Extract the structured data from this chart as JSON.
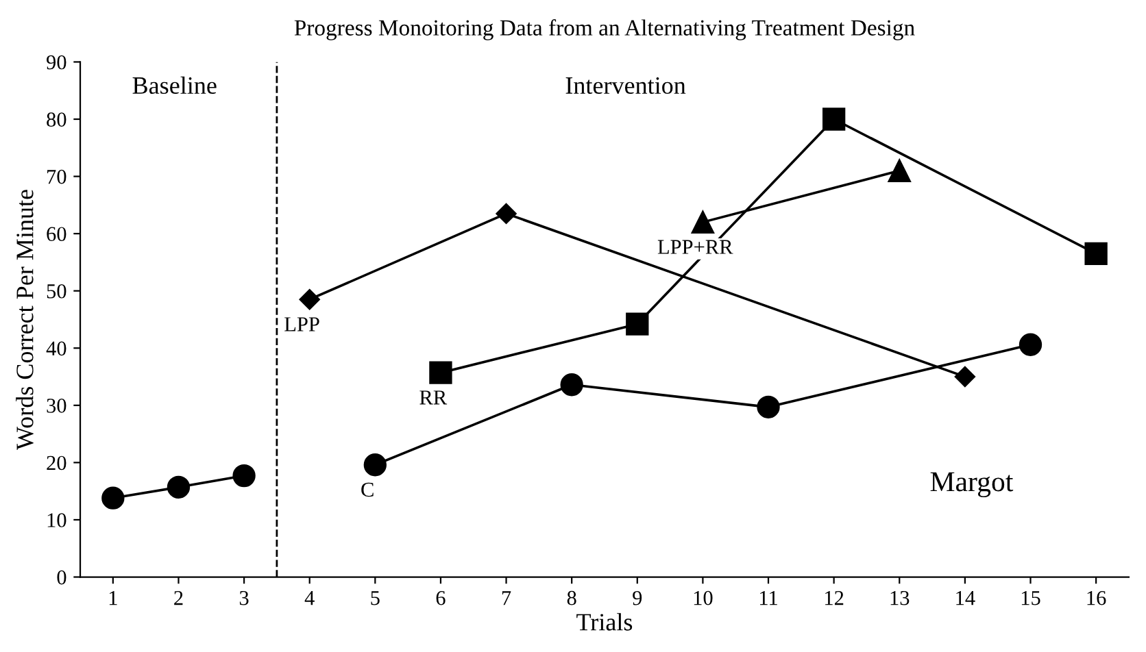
{
  "chart_data": {
    "type": "line",
    "title": "Progress Monoitoring Data from an Alternativing Treatment Design",
    "xlabel": "Trials",
    "ylabel": "Words Correct Per Minute",
    "xlim": [
      0.5,
      16.5
    ],
    "xticks": [
      1,
      2,
      3,
      4,
      5,
      6,
      7,
      8,
      9,
      10,
      11,
      12,
      13,
      14,
      15,
      16
    ],
    "ylim": [
      0,
      90
    ],
    "yticks": [
      0,
      10,
      20,
      30,
      40,
      50,
      60,
      70,
      80,
      90
    ],
    "grid": false,
    "legend": false,
    "line_style": "solid",
    "series": [
      {
        "color": "#000000",
        "marker": "circle",
        "x": [
          1,
          2,
          3
        ],
        "values": [
          13.8,
          15.7,
          17.7
        ]
      },
      {
        "name": "C",
        "color": "#000000",
        "marker": "circle",
        "x": [
          5,
          8,
          11,
          15
        ],
        "values": [
          19.6,
          33.6,
          29.7,
          40.6
        ]
      },
      {
        "name": "LPP",
        "color": "#000000",
        "marker": "diamond",
        "x": [
          4,
          7,
          14
        ],
        "values": [
          48.5,
          63.5,
          35.0
        ]
      },
      {
        "name": "RR",
        "color": "#000000",
        "marker": "square",
        "x": [
          6,
          9,
          12,
          16
        ],
        "values": [
          35.7,
          44.2,
          80.0,
          56.5
        ]
      },
      {
        "name": "LPP+RR",
        "color": "#000000",
        "marker": "triangle",
        "x": [
          10,
          13
        ],
        "values": [
          62.0,
          71.0
        ]
      }
    ],
    "ref_lines": [
      {
        "axis": "x",
        "value": 3.5,
        "color": "#000000",
        "line_style": "dashed"
      }
    ],
    "annotations": [
      "Baseline",
      "Intervention",
      "Margot"
    ]
  }
}
